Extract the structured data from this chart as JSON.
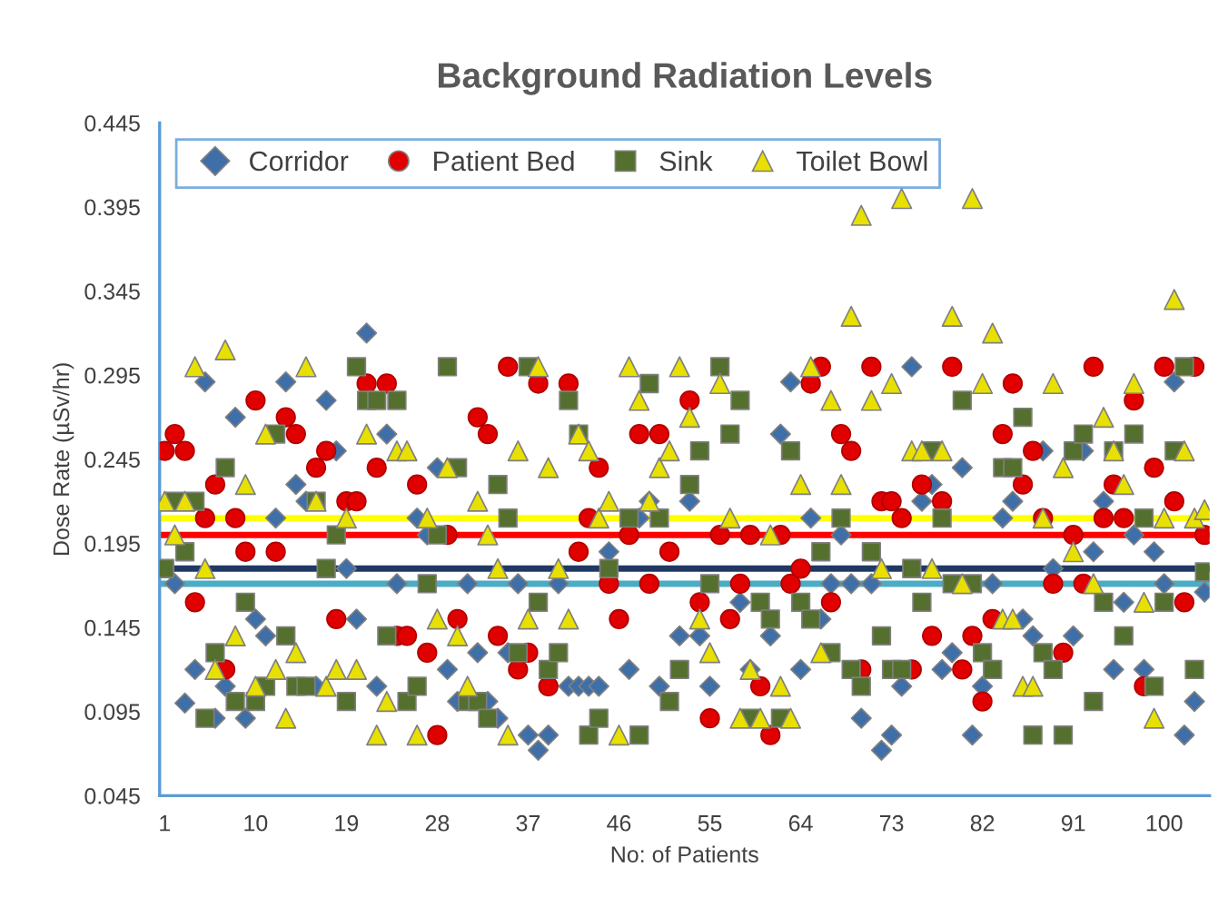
{
  "chart_data": {
    "type": "scatter",
    "title": "Background Radiation Levels",
    "xlabel": "No: of Patients",
    "ylabel": "Dose Rate (µSv/hr)",
    "x": [
      1,
      2,
      3,
      4,
      5,
      6,
      7,
      8,
      9,
      10,
      11,
      12,
      13,
      14,
      15,
      16,
      17,
      18,
      19,
      20,
      21,
      22,
      23,
      24,
      25,
      26,
      27,
      28,
      29,
      30,
      31,
      32,
      33,
      34,
      35,
      36,
      37,
      38,
      39,
      40,
      41,
      42,
      43,
      44,
      45,
      46,
      47,
      48,
      49,
      50,
      51,
      52,
      53,
      54,
      55,
      56,
      57,
      58,
      59,
      60,
      61,
      62,
      63,
      64,
      65,
      66,
      67,
      68,
      69,
      70,
      71,
      72,
      73,
      74,
      75,
      76,
      77,
      78,
      79,
      80,
      81,
      82,
      83,
      84,
      85,
      86,
      87,
      88,
      89,
      90,
      91,
      92,
      93,
      94,
      95,
      96,
      97,
      98,
      99,
      100,
      101,
      102,
      103,
      104
    ],
    "series": [
      {
        "name": "Corridor",
        "color": "#3f6fa8",
        "marker": "diamond",
        "values": [
          null,
          0.171,
          0.1,
          0.12,
          0.291,
          0.091,
          0.11,
          0.27,
          0.091,
          0.15,
          0.14,
          0.21,
          0.291,
          0.23,
          0.22,
          0.11,
          0.28,
          0.25,
          0.18,
          0.15,
          0.32,
          0.11,
          0.26,
          0.171,
          null,
          0.21,
          0.2,
          0.24,
          0.12,
          0.101,
          0.171,
          0.13,
          0.101,
          0.091,
          0.13,
          0.171,
          0.081,
          0.072,
          0.081,
          0.171,
          0.11,
          0.11,
          0.11,
          0.11,
          0.19,
          null,
          0.12,
          0.21,
          0.22,
          0.11,
          null,
          0.14,
          0.22,
          0.14,
          0.11,
          null,
          null,
          0.16,
          0.12,
          null,
          0.14,
          0.26,
          0.291,
          0.12,
          0.21,
          0.15,
          0.171,
          0.2,
          0.171,
          0.091,
          0.171,
          0.072,
          0.081,
          0.11,
          0.3,
          0.22,
          0.23,
          0.12,
          0.13,
          0.24,
          0.081,
          0.11,
          0.171,
          0.21,
          0.22,
          0.15,
          0.14,
          0.25,
          0.18,
          null,
          0.14,
          0.25,
          0.19,
          0.22,
          0.12,
          0.16,
          0.2,
          0.12,
          0.19,
          0.171,
          0.291,
          0.081,
          0.101,
          0.166
        ]
      },
      {
        "name": "Patient Bed",
        "color": "#e00000",
        "marker": "circle",
        "values": [
          0.25,
          0.26,
          0.25,
          0.16,
          0.21,
          0.23,
          0.12,
          0.21,
          0.19,
          0.28,
          null,
          0.19,
          0.27,
          0.26,
          null,
          0.24,
          0.25,
          0.15,
          0.22,
          0.22,
          0.29,
          0.24,
          0.29,
          0.14,
          0.14,
          0.23,
          0.13,
          0.081,
          0.2,
          0.15,
          null,
          0.27,
          0.26,
          0.14,
          0.3,
          0.12,
          0.13,
          0.29,
          0.11,
          null,
          0.29,
          0.19,
          0.21,
          0.24,
          0.171,
          0.15,
          0.2,
          0.26,
          0.171,
          0.26,
          0.19,
          null,
          0.28,
          0.16,
          0.091,
          0.2,
          0.15,
          0.171,
          0.2,
          0.11,
          0.081,
          0.2,
          0.171,
          0.18,
          0.29,
          0.3,
          0.16,
          0.26,
          0.25,
          0.12,
          0.3,
          0.22,
          0.22,
          0.21,
          0.12,
          0.23,
          0.14,
          0.22,
          0.3,
          0.12,
          0.14,
          0.101,
          0.15,
          0.26,
          0.29,
          0.23,
          0.25,
          0.21,
          0.171,
          0.13,
          0.2,
          0.171,
          0.3,
          0.21,
          0.23,
          0.21,
          0.28,
          0.11,
          0.24,
          0.3,
          0.22,
          0.16,
          0.3,
          0.2
        ]
      },
      {
        "name": "Sink",
        "color": "#55702e",
        "marker": "square",
        "values": [
          0.18,
          0.22,
          0.19,
          0.22,
          0.091,
          0.13,
          0.24,
          0.101,
          0.16,
          0.101,
          0.11,
          0.26,
          0.14,
          0.11,
          0.11,
          0.22,
          0.18,
          0.2,
          0.101,
          0.3,
          0.28,
          0.28,
          0.14,
          0.28,
          0.101,
          0.11,
          0.171,
          0.2,
          0.3,
          0.24,
          0.101,
          0.101,
          0.091,
          0.23,
          0.21,
          0.13,
          0.3,
          0.16,
          0.12,
          0.13,
          0.28,
          0.26,
          0.081,
          0.091,
          0.18,
          null,
          0.21,
          0.081,
          0.29,
          0.21,
          0.101,
          0.12,
          0.23,
          0.25,
          0.171,
          0.3,
          0.26,
          0.28,
          0.091,
          0.16,
          0.15,
          0.091,
          0.25,
          0.16,
          0.15,
          0.19,
          0.13,
          0.21,
          0.12,
          0.11,
          0.19,
          0.14,
          0.12,
          0.12,
          0.18,
          0.16,
          0.25,
          0.21,
          0.171,
          0.28,
          0.171,
          0.13,
          0.12,
          0.24,
          0.24,
          0.27,
          0.081,
          0.13,
          0.12,
          0.081,
          0.25,
          0.26,
          0.101,
          0.16,
          0.25,
          0.14,
          0.26,
          0.21,
          0.11,
          0.16,
          0.25,
          0.3,
          0.12,
          0.178
        ]
      },
      {
        "name": "Toilet Bowl",
        "color": "#e8e000",
        "marker": "triangle",
        "values": [
          0.22,
          0.2,
          0.22,
          0.3,
          0.18,
          0.12,
          0.31,
          0.14,
          0.23,
          0.11,
          0.26,
          0.12,
          0.091,
          0.13,
          0.3,
          0.22,
          0.11,
          0.12,
          0.21,
          0.12,
          0.26,
          0.081,
          0.101,
          0.25,
          0.25,
          0.081,
          0.21,
          0.15,
          0.24,
          0.14,
          0.11,
          0.22,
          0.2,
          0.18,
          0.081,
          0.25,
          0.15,
          0.3,
          0.24,
          0.18,
          0.15,
          0.26,
          0.25,
          0.21,
          0.22,
          0.081,
          0.3,
          0.28,
          0.22,
          0.24,
          0.25,
          0.3,
          0.27,
          0.15,
          0.13,
          0.29,
          0.21,
          0.091,
          0.12,
          0.091,
          0.2,
          0.11,
          0.091,
          0.23,
          0.3,
          0.13,
          0.28,
          0.23,
          0.33,
          0.39,
          0.28,
          0.18,
          0.29,
          0.4,
          0.25,
          0.25,
          0.18,
          0.25,
          0.33,
          0.171,
          0.4,
          0.29,
          0.32,
          0.15,
          0.15,
          0.11,
          0.11,
          0.21,
          0.29,
          0.24,
          0.19,
          null,
          0.171,
          0.27,
          0.25,
          0.23,
          0.29,
          0.16,
          0.091,
          0.21,
          0.34,
          0.25,
          0.21,
          0.215
        ]
      }
    ],
    "ref_lines": [
      {
        "axis": "y",
        "value": 0.21,
        "color": "#ffff00"
      },
      {
        "axis": "y",
        "value": 0.2,
        "color": "#ff0000"
      },
      {
        "axis": "y",
        "value": 0.18,
        "color": "#1f3864"
      },
      {
        "axis": "y",
        "value": 0.171,
        "color": "#4bacc6"
      }
    ],
    "xlim": [
      0.5,
      104.5
    ],
    "xticks": [
      1,
      10,
      19,
      28,
      37,
      46,
      55,
      64,
      73,
      82,
      91,
      100
    ],
    "ylim": [
      0.045,
      0.445
    ],
    "yticks": [
      0.045,
      0.095,
      0.145,
      0.195,
      0.245,
      0.295,
      0.345,
      0.395,
      0.445
    ],
    "grid": false,
    "legend": "top left"
  }
}
